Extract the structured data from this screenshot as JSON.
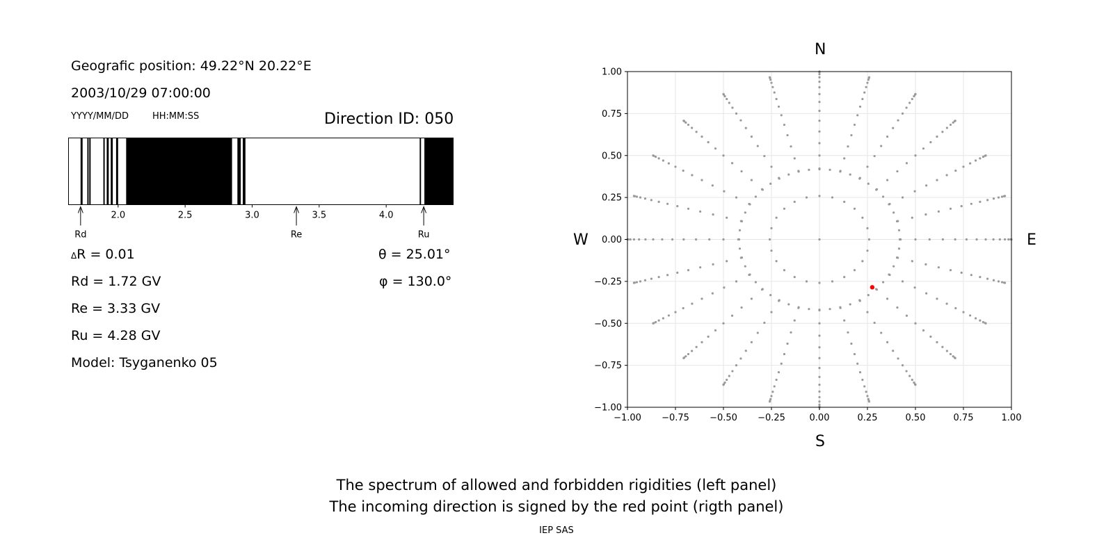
{
  "left_panel": {
    "position_line": "Geografic position: 49.22°N 20.22°E",
    "datetime_line": "2003/10/29 07:00:00",
    "date_format": "YYYY/MM/DD",
    "time_format": "HH:MM:SS",
    "direction_id": "Direction ID: 050",
    "delta_r": "R = 0.01",
    "delta_symbol": "Δ",
    "rd": "Rd = 1.72 GV",
    "re": "Re = 3.33 GV",
    "ru": "Ru = 4.28 GV",
    "model": "Model: Tsyganenko 05",
    "theta": "θ = 25.01°",
    "phi": "φ = 130.0°",
    "markers": [
      {
        "label": "Rd",
        "value": 1.72
      },
      {
        "label": "Re",
        "value": 3.33
      },
      {
        "label": "Ru",
        "value": 4.28
      }
    ]
  },
  "right_panel": {
    "north": "N",
    "south": "S",
    "west": "W",
    "east": "E"
  },
  "captions": {
    "line1": "The spectrum of allowed and forbidden rigidities (left panel)",
    "line2": "The incoming direction is signed by the red point (rigth panel)",
    "credit": "IEP SAS"
  },
  "chart_data": [
    {
      "type": "bar",
      "description_axis": "rigidity",
      "xlim": [
        1.63,
        4.5
      ],
      "xticks": [
        2.0,
        2.5,
        3.0,
        3.5,
        4.0
      ],
      "xtick_labels": [
        "2.0",
        "2.5",
        "3.0",
        "3.5",
        "4.0"
      ],
      "forbidden_intervals": [
        [
          1.72,
          1.735
        ],
        [
          1.77,
          1.78
        ],
        [
          1.785,
          1.795
        ],
        [
          1.89,
          1.9
        ],
        [
          1.915,
          1.93
        ],
        [
          1.945,
          1.96
        ],
        [
          1.985,
          2.0
        ],
        [
          2.06,
          2.85
        ],
        [
          2.89,
          2.915
        ],
        [
          2.93,
          2.95
        ],
        [
          4.25,
          4.26
        ],
        [
          4.285,
          4.5
        ]
      ],
      "colors": {
        "forbidden": "#000000",
        "allowed": "#ffffff"
      }
    },
    {
      "type": "scatter",
      "xlim": [
        -1.0,
        1.0
      ],
      "ylim": [
        -1.0,
        1.0
      ],
      "xticks": [
        -1.0,
        -0.75,
        -0.5,
        -0.25,
        0.0,
        0.25,
        0.5,
        0.75,
        1.0
      ],
      "xtick_labels": [
        "−1.00",
        "−0.75",
        "−0.50",
        "−0.25",
        "0.00",
        "0.25",
        "0.50",
        "0.75",
        "1.00"
      ],
      "yticks": [
        -1.0,
        -0.75,
        -0.5,
        -0.25,
        0.0,
        0.25,
        0.5,
        0.75,
        1.0
      ],
      "ytick_labels": [
        "−1.00",
        "−0.75",
        "−0.50",
        "−0.25",
        "0.00",
        "0.25",
        "0.50",
        "0.75",
        "1.00"
      ],
      "grid": true,
      "grid_points": {
        "zenith_angles_deg": [
          0,
          15,
          25,
          30,
          35,
          40,
          45,
          50,
          55,
          60,
          65,
          70,
          75,
          80,
          85,
          90
        ],
        "azimuth_step_deg": 15,
        "color": "#999999"
      },
      "highlight": {
        "x": 0.275,
        "y": -0.285,
        "color": "#ff0000"
      }
    }
  ]
}
